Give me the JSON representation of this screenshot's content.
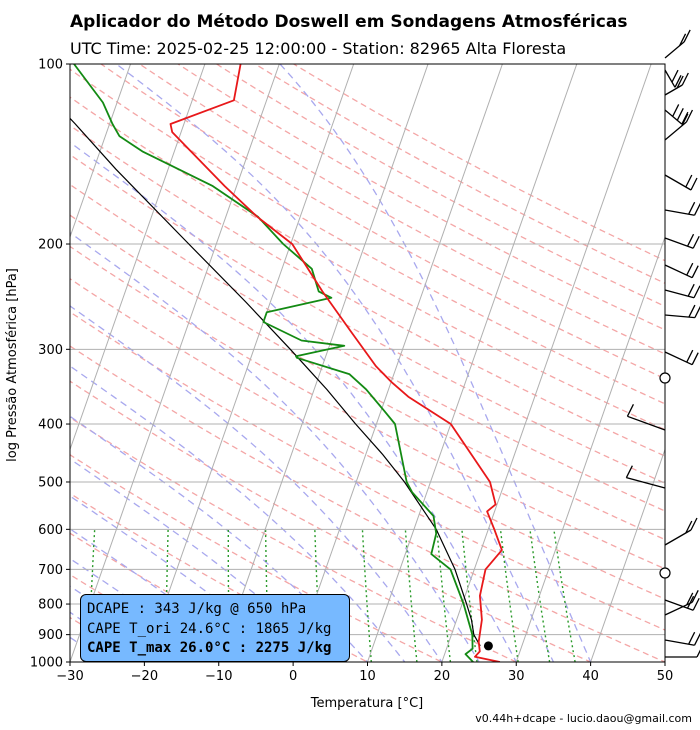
{
  "title": "Aplicador do Método Doswell em Sondagens Atmosféricas",
  "subtitle": "UTC Time: 2025-02-25 12:00:00 - Station: 82965 Alta Floresta",
  "version": "v0.44h+dcape  -  lucio.daou@gmail.com",
  "info_box": {
    "line1": "DCAPE : 343 J/kg @ 650 hPa",
    "line2": "CAPE T_ori 24.6°C : 1865 J/kg",
    "line3": "CAPE T_max 26.0°C : 2275 J/kg"
  },
  "colors": {
    "temperature": "#e8181a",
    "dewpoint": "#138a13",
    "parcel": "#000000",
    "cape_fill": "#77b9ff",
    "dry_adiabats": "#f4a6a6",
    "moist_adiabats": "#a8a8ee",
    "mixing_ratio": "#2a9a2a"
  },
  "chart_data": {
    "type": "skew-t",
    "xlabel": "Temperatura [°C]",
    "ylabel": "log Pressão Atmosférica [hPa]",
    "xlim": [
      -30,
      50
    ],
    "ylim": [
      1000,
      100
    ],
    "y_scale": "log",
    "grid": true,
    "x_ticks": [
      "−30",
      "−20",
      "−10",
      "0",
      "10",
      "20",
      "30",
      "40",
      "50"
    ],
    "x_tick_values": [
      -30,
      -20,
      -10,
      0,
      10,
      20,
      30,
      40,
      50
    ],
    "y_ticks": [
      "100",
      "200",
      "300",
      "400",
      "500",
      "600",
      "700",
      "800",
      "900",
      "1000"
    ],
    "y_tick_values": [
      100,
      200,
      300,
      400,
      500,
      600,
      700,
      800,
      900,
      1000
    ],
    "temperature": [
      {
        "p": 1000,
        "t": 27.8
      },
      {
        "p": 980,
        "t": 24.2
      },
      {
        "p": 960,
        "t": 24.6
      },
      {
        "p": 925,
        "t": 24.0
      },
      {
        "p": 850,
        "t": 23.4
      },
      {
        "p": 775,
        "t": 22.0
      },
      {
        "p": 700,
        "t": 21.5
      },
      {
        "p": 650,
        "t": 22.8
      },
      {
        "p": 600,
        "t": 20.8
      },
      {
        "p": 560,
        "t": 19.0
      },
      {
        "p": 545,
        "t": 19.8
      },
      {
        "p": 500,
        "t": 18.0
      },
      {
        "p": 400,
        "t": 10.0
      },
      {
        "p": 360,
        "t": 3.0
      },
      {
        "p": 340,
        "t": 0.0
      },
      {
        "p": 320,
        "t": -2.8
      },
      {
        "p": 280,
        "t": -7.8
      },
      {
        "p": 250,
        "t": -12.0
      },
      {
        "p": 240,
        "t": -13.5
      },
      {
        "p": 200,
        "t": -19.8
      },
      {
        "p": 180,
        "t": -25.8
      },
      {
        "p": 160,
        "t": -31.6
      },
      {
        "p": 130,
        "t": -41.2
      },
      {
        "p": 126,
        "t": -41.8
      },
      {
        "p": 115,
        "t": -34.4
      },
      {
        "p": 100,
        "t": -35.2
      }
    ],
    "dewpoint": [
      {
        "p": 1000,
        "t": 24.2
      },
      {
        "p": 970,
        "t": 22.8
      },
      {
        "p": 950,
        "t": 23.5
      },
      {
        "p": 900,
        "t": 22.8
      },
      {
        "p": 800,
        "t": 20.2
      },
      {
        "p": 700,
        "t": 16.8
      },
      {
        "p": 660,
        "t": 13.5
      },
      {
        "p": 610,
        "t": 13.2
      },
      {
        "p": 570,
        "t": 12.0
      },
      {
        "p": 520,
        "t": 8.0
      },
      {
        "p": 500,
        "t": 6.8
      },
      {
        "p": 400,
        "t": 2.5
      },
      {
        "p": 380,
        "t": 0.4
      },
      {
        "p": 350,
        "t": -3.0
      },
      {
        "p": 330,
        "t": -6.0
      },
      {
        "p": 310,
        "t": -13.8
      },
      {
        "p": 308,
        "t": -14.0
      },
      {
        "p": 296,
        "t": -8.0
      },
      {
        "p": 290,
        "t": -14.0
      },
      {
        "p": 270,
        "t": -20.0
      },
      {
        "p": 260,
        "t": -20.0
      },
      {
        "p": 246,
        "t": -12.0
      },
      {
        "p": 240,
        "t": -14.0
      },
      {
        "p": 220,
        "t": -16.0
      },
      {
        "p": 200,
        "t": -21.0
      },
      {
        "p": 180,
        "t": -25.7
      },
      {
        "p": 160,
        "t": -33.2
      },
      {
        "p": 140,
        "t": -44.3
      },
      {
        "p": 132,
        "t": -48.1
      },
      {
        "p": 126,
        "t": -49.6
      },
      {
        "p": 116,
        "t": -51.9
      },
      {
        "p": 100,
        "t": -57.6
      }
    ],
    "parcel": [
      {
        "p": 940,
        "t": 24.4
      },
      {
        "p": 900,
        "t": 23.0
      },
      {
        "p": 850,
        "t": 22.0
      },
      {
        "p": 800,
        "t": 20.6
      },
      {
        "p": 700,
        "t": 17.4
      },
      {
        "p": 600,
        "t": 13.0
      },
      {
        "p": 500,
        "t": 6.5
      },
      {
        "p": 450,
        "t": 2.3
      },
      {
        "p": 400,
        "t": -2.8
      },
      {
        "p": 350,
        "t": -8.3
      },
      {
        "p": 300,
        "t": -15.1
      },
      {
        "p": 250,
        "t": -23.3
      },
      {
        "p": 200,
        "t": -33.7
      },
      {
        "p": 150,
        "t": -47.0
      },
      {
        "p": 126,
        "t": -54.6
      },
      {
        "p": 100,
        "t": -65.1
      }
    ],
    "parcel_start": {
      "p": 940,
      "t": 25.5
    },
    "wind_barbs_pressures": [
      100,
      110,
      130,
      150,
      170,
      200,
      220,
      250,
      300,
      350,
      400,
      450,
      500,
      600,
      700,
      800,
      850,
      900,
      950,
      1000
    ]
  }
}
